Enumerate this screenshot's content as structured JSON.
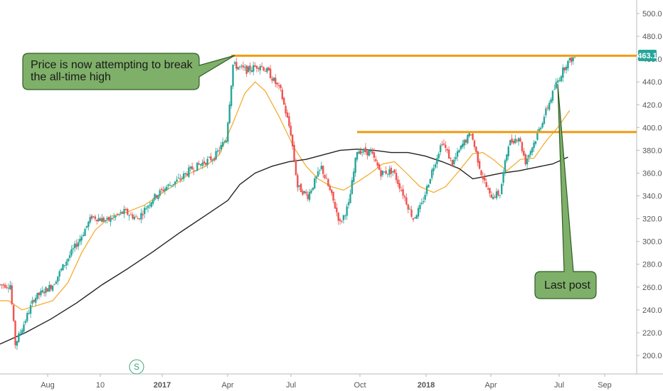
{
  "chart_data": {
    "type": "candlestick",
    "y_ticks": [
      "500.0",
      "480.0",
      "460.0",
      "440.0",
      "420.0",
      "400.0",
      "380.0",
      "360.0",
      "340.0",
      "320.0",
      "300.0",
      "280.0",
      "260.0",
      "240.0",
      "220.0",
      "200.0"
    ],
    "y_tick_values": [
      500,
      480,
      460,
      440,
      420,
      400,
      380,
      360,
      340,
      320,
      300,
      280,
      260,
      240,
      220,
      200
    ],
    "ylim": [
      188,
      510
    ],
    "x_ticks": [
      "Aug",
      "10",
      "2017",
      "Apr",
      "Jul",
      "Oct",
      "2018",
      "Apr",
      "Jul",
      "Sep"
    ],
    "x_tick_bold": [
      false,
      false,
      true,
      false,
      false,
      false,
      true,
      false,
      false,
      false
    ],
    "last_price": "463.1",
    "grid": false,
    "anchors": [
      {
        "t": 0,
        "p": 262
      },
      {
        "t": 12,
        "p": 262
      },
      {
        "t": 18,
        "p": 210
      },
      {
        "t": 26,
        "p": 224
      },
      {
        "t": 40,
        "p": 250
      },
      {
        "t": 62,
        "p": 262
      },
      {
        "t": 78,
        "p": 283
      },
      {
        "t": 96,
        "p": 305
      },
      {
        "t": 108,
        "p": 322
      },
      {
        "t": 126,
        "p": 318
      },
      {
        "t": 146,
        "p": 326
      },
      {
        "t": 162,
        "p": 320
      },
      {
        "t": 180,
        "p": 338
      },
      {
        "t": 196,
        "p": 348
      },
      {
        "t": 212,
        "p": 355
      },
      {
        "t": 222,
        "p": 362
      },
      {
        "t": 236,
        "p": 368
      },
      {
        "t": 252,
        "p": 374
      },
      {
        "t": 266,
        "p": 390
      },
      {
        "t": 274,
        "p": 455
      },
      {
        "t": 290,
        "p": 450
      },
      {
        "t": 306,
        "p": 455
      },
      {
        "t": 316,
        "p": 448
      },
      {
        "t": 330,
        "p": 432
      },
      {
        "t": 342,
        "p": 395
      },
      {
        "t": 350,
        "p": 348
      },
      {
        "t": 362,
        "p": 340
      },
      {
        "t": 378,
        "p": 365
      },
      {
        "t": 390,
        "p": 340
      },
      {
        "t": 400,
        "p": 316
      },
      {
        "t": 410,
        "p": 332
      },
      {
        "t": 420,
        "p": 380
      },
      {
        "t": 436,
        "p": 378
      },
      {
        "t": 448,
        "p": 360
      },
      {
        "t": 462,
        "p": 362
      },
      {
        "t": 474,
        "p": 342
      },
      {
        "t": 486,
        "p": 320
      },
      {
        "t": 496,
        "p": 332
      },
      {
        "t": 508,
        "p": 362
      },
      {
        "t": 520,
        "p": 388
      },
      {
        "t": 532,
        "p": 368
      },
      {
        "t": 544,
        "p": 385
      },
      {
        "t": 554,
        "p": 395
      },
      {
        "t": 566,
        "p": 360
      },
      {
        "t": 576,
        "p": 340
      },
      {
        "t": 588,
        "p": 342
      },
      {
        "t": 598,
        "p": 386
      },
      {
        "t": 610,
        "p": 392
      },
      {
        "t": 618,
        "p": 370
      },
      {
        "t": 630,
        "p": 390
      },
      {
        "t": 640,
        "p": 410
      },
      {
        "t": 654,
        "p": 438
      },
      {
        "t": 666,
        "p": 456
      },
      {
        "t": 676,
        "p": 462
      }
    ],
    "moving_averages": [
      {
        "color": "#f5a623",
        "points": [
          [
            0,
            248
          ],
          [
            10,
            248
          ],
          [
            18,
            244
          ],
          [
            26,
            240
          ],
          [
            40,
            243
          ],
          [
            62,
            248
          ],
          [
            80,
            264
          ],
          [
            96,
            290
          ],
          [
            112,
            310
          ],
          [
            130,
            322
          ],
          [
            150,
            326
          ],
          [
            170,
            332
          ],
          [
            190,
            342
          ],
          [
            206,
            350
          ],
          [
            224,
            360
          ],
          [
            242,
            366
          ],
          [
            258,
            376
          ],
          [
            274,
            404
          ],
          [
            288,
            430
          ],
          [
            300,
            440
          ],
          [
            312,
            432
          ],
          [
            328,
            410
          ],
          [
            346,
            382
          ],
          [
            360,
            366
          ],
          [
            374,
            355
          ],
          [
            390,
            348
          ],
          [
            404,
            345
          ],
          [
            420,
            352
          ],
          [
            436,
            360
          ],
          [
            450,
            368
          ],
          [
            464,
            370
          ],
          [
            478,
            360
          ],
          [
            494,
            348
          ],
          [
            510,
            343
          ],
          [
            524,
            348
          ],
          [
            540,
            362
          ],
          [
            556,
            377
          ],
          [
            568,
            378
          ],
          [
            580,
            372
          ],
          [
            596,
            362
          ],
          [
            612,
            372
          ],
          [
            628,
            373
          ],
          [
            642,
            388
          ],
          [
            656,
            400
          ],
          [
            670,
            415
          ]
        ]
      },
      {
        "color": "#222222",
        "points": [
          [
            0,
            210
          ],
          [
            30,
            220
          ],
          [
            60,
            232
          ],
          [
            90,
            246
          ],
          [
            120,
            262
          ],
          [
            150,
            276
          ],
          [
            180,
            291
          ],
          [
            210,
            307
          ],
          [
            240,
            322
          ],
          [
            268,
            336
          ],
          [
            282,
            350
          ],
          [
            300,
            360
          ],
          [
            320,
            366
          ],
          [
            340,
            370
          ],
          [
            360,
            372
          ],
          [
            380,
            376
          ],
          [
            400,
            380
          ],
          [
            420,
            381
          ],
          [
            440,
            380
          ],
          [
            460,
            378
          ],
          [
            480,
            378
          ],
          [
            500,
            375
          ],
          [
            520,
            370
          ],
          [
            540,
            364
          ],
          [
            556,
            355
          ],
          [
            570,
            357
          ],
          [
            590,
            360
          ],
          [
            610,
            362
          ],
          [
            630,
            365
          ],
          [
            650,
            368
          ],
          [
            668,
            374
          ]
        ]
      }
    ],
    "resistance_lines": [
      {
        "price": 463,
        "t_start": 272,
        "t_end": 760
      },
      {
        "price": 396,
        "t_start": 420,
        "t_end": 760
      }
    ],
    "annotations": [
      {
        "line1": "Price is now attempting to break",
        "line2": "the all-time high",
        "points_to_t": 272,
        "points_to_p": 463
      },
      {
        "line1": "Last post",
        "line2": "",
        "points_to_t": 650,
        "points_to_p": 437
      }
    ]
  },
  "watermark_icon": "S"
}
